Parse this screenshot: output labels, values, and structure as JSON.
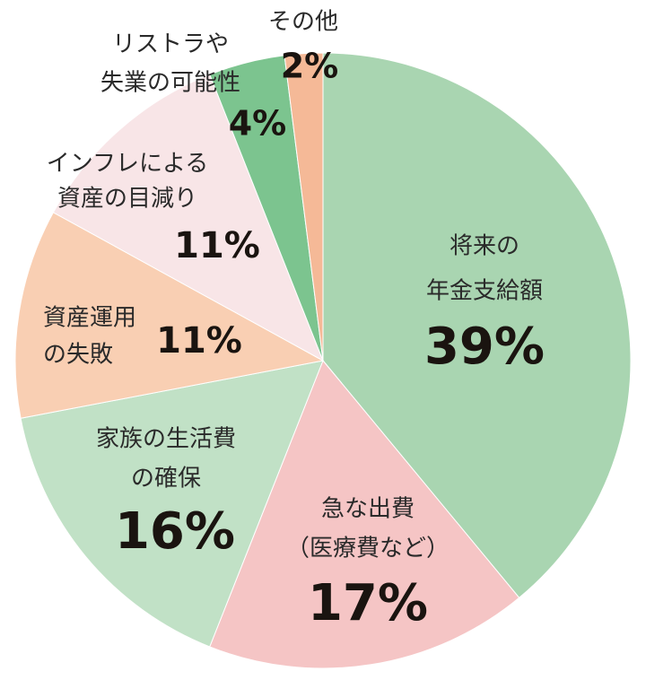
{
  "chart_data": {
    "type": "pie",
    "categories": [
      [
        "将来の",
        "年金支給額"
      ],
      [
        "急な出費",
        "（医療費など）"
      ],
      [
        "家族の生活費",
        "の確保"
      ],
      [
        "資産運用",
        "の失敗"
      ],
      [
        "インフレによる",
        "資産の目減り"
      ],
      [
        "リストラや",
        "失業の可能性"
      ],
      [
        "その他"
      ]
    ],
    "values": [
      39,
      17,
      16,
      11,
      11,
      4,
      2
    ],
    "value_labels": [
      "39%",
      "17%",
      "16%",
      "11%",
      "11%",
      "4%",
      "2%"
    ],
    "colors": [
      "#a9d5b1",
      "#f5c5c5",
      "#c1e1c6",
      "#f9cfb3",
      "#f8e5e7",
      "#7cc48f",
      "#f5b997"
    ]
  }
}
